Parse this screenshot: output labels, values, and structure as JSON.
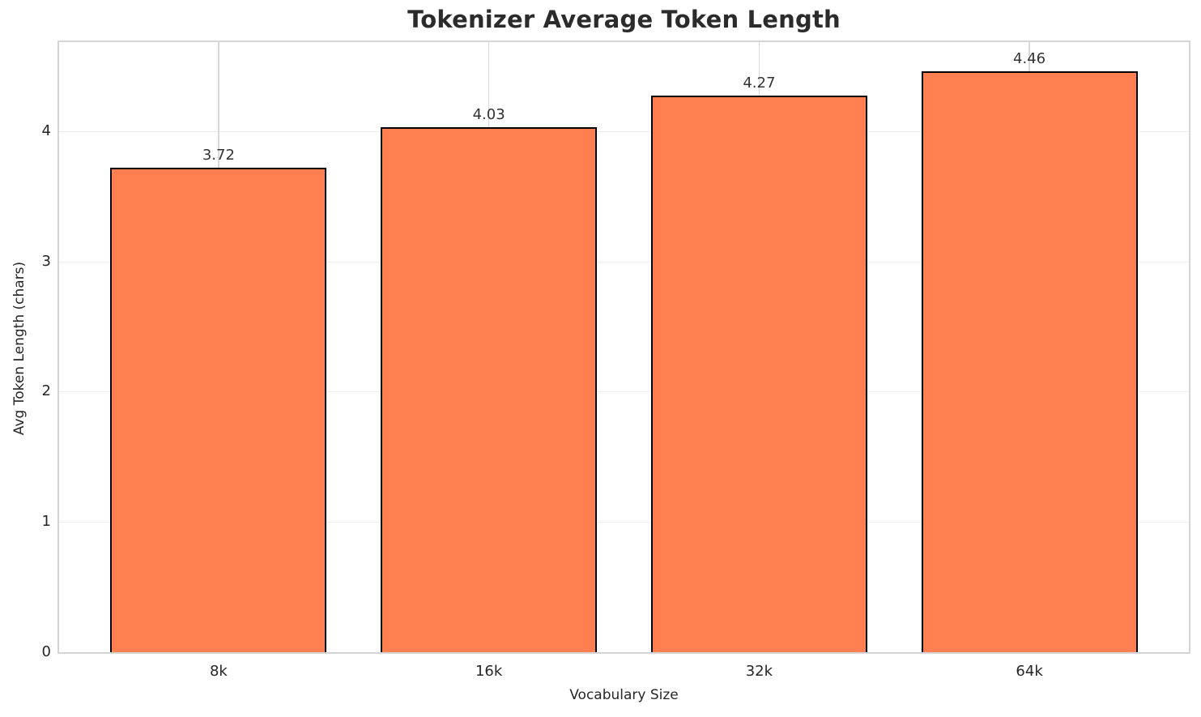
{
  "chart_data": {
    "type": "bar",
    "title": "Tokenizer Average Token Length",
    "xlabel": "Vocabulary Size",
    "ylabel": "Avg Token Length (chars)",
    "categories": [
      "8k",
      "16k",
      "32k",
      "64k"
    ],
    "values": [
      3.72,
      4.03,
      4.27,
      4.46
    ],
    "value_labels": [
      "3.72",
      "4.03",
      "4.27",
      "4.46"
    ],
    "yticks": [
      0,
      1,
      2,
      3,
      4
    ],
    "ylim": [
      0,
      4.683
    ],
    "grid": true,
    "legend": "none",
    "colors": {
      "bar_fill": "#FF7F50",
      "bar_edge": "#000000",
      "grid_h": "#ececec",
      "grid_v": "#d8d8d8",
      "spine": "#d5d5d5",
      "title_text": "#2b2b2b",
      "tick_text": "#262626"
    }
  }
}
